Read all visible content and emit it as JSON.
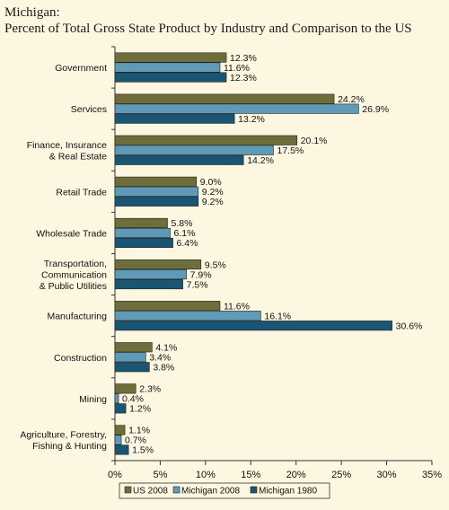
{
  "chart_data": {
    "type": "bar",
    "orientation": "horizontal",
    "title_lines": [
      "Michigan:",
      "Percent of Total Gross State Product by Industry and Comparison to the US"
    ],
    "categories": [
      [
        "Government"
      ],
      [
        "Services"
      ],
      [
        "Finance, Insurance",
        "& Real Estate"
      ],
      [
        "Retail Trade"
      ],
      [
        "Wholesale Trade"
      ],
      [
        "Transportation,",
        "Communication",
        "& Public Utilities"
      ],
      [
        "Manufacturing"
      ],
      [
        "Construction"
      ],
      [
        "Mining"
      ],
      [
        "Agriculture, Forestry,",
        "Fishing & Hunting"
      ]
    ],
    "series": [
      {
        "name": "US 2008",
        "color": "#6e6e3c",
        "values": [
          12.3,
          24.2,
          20.1,
          9.0,
          5.8,
          9.5,
          11.6,
          4.1,
          2.3,
          1.1
        ],
        "labels": [
          "12.3%",
          "24.2%",
          "20.1%",
          "9.0%",
          "5.8%",
          "9.5%",
          "11.6%",
          "4.1%",
          "2.3%",
          "1.1%"
        ]
      },
      {
        "name": "Michigan 2008",
        "color": "#5f9ab6",
        "values": [
          11.6,
          26.9,
          17.5,
          9.2,
          6.1,
          7.9,
          16.1,
          3.4,
          0.4,
          0.7
        ],
        "labels": [
          "11.6%",
          "26.9%",
          "17.5%",
          "9.2%",
          "6.1%",
          "7.9%",
          "16.1%",
          "3.4%",
          "0.4%",
          "0.7%"
        ]
      },
      {
        "name": "Michigan 1980",
        "color": "#1a5573",
        "values": [
          12.3,
          13.2,
          14.2,
          9.2,
          6.4,
          7.5,
          30.6,
          3.8,
          1.2,
          1.5
        ],
        "labels": [
          "12.3%",
          "13.2%",
          "14.2%",
          "9.2%",
          "6.4%",
          "7.5%",
          "30.6%",
          "3.8%",
          "1.2%",
          "1.5%"
        ]
      }
    ],
    "xlim": [
      0,
      35
    ],
    "x_ticks": [
      0,
      5,
      10,
      15,
      20,
      25,
      30,
      35
    ],
    "x_tick_labels": [
      "0%",
      "5%",
      "10%",
      "15%",
      "20%",
      "25%",
      "30%",
      "35%"
    ],
    "grid": false,
    "legend_position": "bottom"
  }
}
